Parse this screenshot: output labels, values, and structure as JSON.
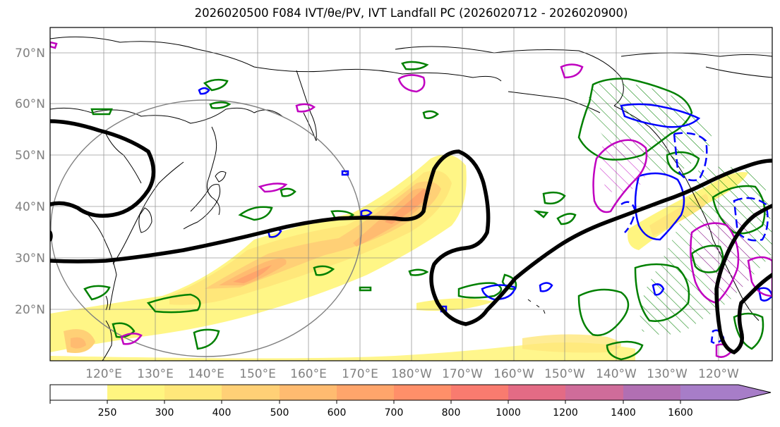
{
  "title": "2026020500 F084 IVT/θe/PV, IVT Landfall PC (2026020712 - 2026020900)",
  "map": {
    "lat_labels": [
      "70°N",
      "60°N",
      "50°N",
      "40°N",
      "30°N",
      "20°N"
    ],
    "lon_labels": [
      "120°E",
      "130°E",
      "140°E",
      "150°E",
      "160°E",
      "170°E",
      "180°W",
      "170°W",
      "160°W",
      "150°W",
      "140°W",
      "130°W",
      "120°W"
    ],
    "lon_range_deg_east": [
      110,
      248
    ],
    "lat_range": [
      10,
      75
    ],
    "gridlines": true
  },
  "colorbar": {
    "ticks": [
      "250",
      "300",
      "400",
      "500",
      "600",
      "700",
      "800",
      "1000",
      "1200",
      "1400",
      "1600"
    ],
    "colors": [
      "#ffffff",
      "#fff580",
      "#ffe77a",
      "#ffd076",
      "#ffbb70",
      "#ffa56b",
      "#ff8f69",
      "#f97b6f",
      "#e36b85",
      "#cf6c9a",
      "#b16fb3",
      "#a77dc8"
    ],
    "extend": "max"
  },
  "colors": {
    "theta_e_contour": "#000000",
    "pv_positive": "#008000",
    "pv_negative": "#0000ff",
    "magenta_contour": "#c000c0",
    "landfall_circle": "#808080"
  }
}
